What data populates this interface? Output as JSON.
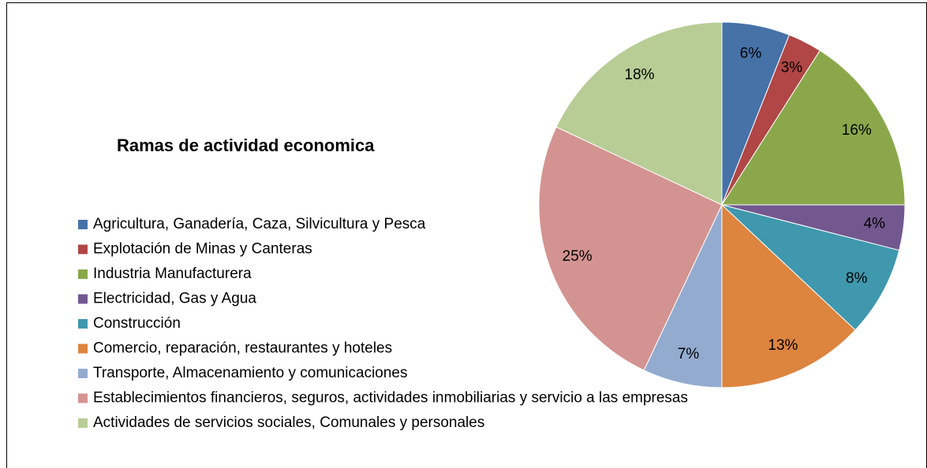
{
  "chart_data": {
    "type": "pie",
    "title": "Ramas de actividad economica",
    "categories": [
      "Agricultura, Ganadería, Caza, Silvicultura y Pesca",
      "Explotación de Minas y Canteras",
      "Industria Manufacturera",
      "Electricidad, Gas y Agua",
      "Construcción",
      "Comercio, reparación, restaurantes y hoteles",
      "Transporte, Almacenamiento y comunicaciones",
      "Establecimientos financieros, seguros, actividades inmobiliarias y servicio a las empresas",
      "Actividades de servicios sociales, Comunales y personales"
    ],
    "values": [
      6,
      3,
      16,
      4,
      8,
      13,
      7,
      25,
      18
    ],
    "value_labels": [
      "6%",
      "3%",
      "16%",
      "4%",
      "8%",
      "13%",
      "7%",
      "25%",
      "18%"
    ],
    "colors": [
      "#4672a8",
      "#b04645",
      "#8aa84b",
      "#72588f",
      "#3f98ae",
      "#dd843f",
      "#94abd0",
      "#d39391",
      "#b8cd96"
    ],
    "legend": "left"
  }
}
